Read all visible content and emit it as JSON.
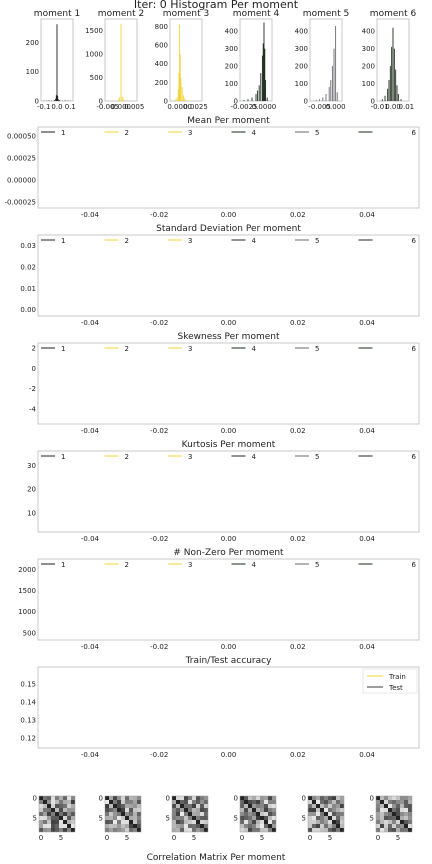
{
  "figure": {
    "suptitle": "Iter: 0 Histogram Per moment",
    "corr_title": "Correlation Matrix Per moment"
  },
  "colors": {
    "moment_1": "#1f1f1f",
    "moment_2": "#f2d33a",
    "moment_3": "#f2d33a",
    "moment_4": "#1c2a1c",
    "moment_5": "#6a6a70",
    "moment_6": "#1c2a1c",
    "train": "#f2d33a",
    "test": "#3a3a3a"
  },
  "chart_data": [
    {
      "type": "histogram",
      "title": "moment 1",
      "xticks": [
        "-0.1",
        "0.0",
        "0.1"
      ],
      "yticks": [
        "0",
        "100",
        "200"
      ],
      "xlim": [
        -0.12,
        0.12
      ],
      "ylim": [
        0,
        280
      ],
      "color": "#1f1f1f",
      "bins_x": [
        -0.1,
        -0.08,
        -0.06,
        -0.04,
        -0.02,
        -0.01,
        -0.005,
        0.0,
        0.005,
        0.01,
        0.02,
        0.04,
        0.06,
        0.08,
        0.1
      ],
      "bins_y": [
        1,
        1,
        2,
        1,
        3,
        8,
        20,
        262,
        18,
        6,
        3,
        1,
        2,
        1,
        1
      ]
    },
    {
      "type": "histogram",
      "title": "moment 2",
      "xticks": [
        "-0.005",
        "0.000",
        "0.005"
      ],
      "yticks": [
        "0",
        "500",
        "1000",
        "1500"
      ],
      "xlim": [
        -0.006,
        0.006
      ],
      "ylim": [
        0,
        1750
      ],
      "color": "#f2d33a",
      "bins_x": [
        -0.003,
        -0.002,
        -0.001,
        -0.0005,
        0.0,
        0.0005,
        0.001,
        0.002,
        0.003
      ],
      "bins_y": [
        5,
        10,
        30,
        80,
        1650,
        90,
        40,
        15,
        5
      ]
    },
    {
      "type": "histogram",
      "title": "moment 3",
      "xticks": [
        "0.0000",
        "0.0025"
      ],
      "yticks": [
        "0",
        "200",
        "400",
        "600",
        "800"
      ],
      "xlim": [
        -0.0015,
        0.0035
      ],
      "ylim": [
        0,
        880
      ],
      "color": "#f2d33a",
      "bins_x": [
        -0.0006,
        -0.0004,
        -0.0002,
        -0.0001,
        0.0,
        0.0001,
        0.0002,
        0.0004,
        0.0006,
        0.0008,
        0.001,
        0.0015
      ],
      "bins_y": [
        20,
        40,
        120,
        300,
        820,
        500,
        250,
        150,
        60,
        30,
        10,
        5
      ]
    },
    {
      "type": "histogram",
      "title": "moment 4",
      "xticks": [
        "-0.0025",
        "0.0000"
      ],
      "yticks": [
        "0",
        "100",
        "200",
        "300",
        "400"
      ],
      "xlim": [
        -0.003,
        0.001
      ],
      "ylim": [
        0,
        470
      ],
      "color": "#1c2a1c",
      "bins_x": [
        -0.0025,
        -0.002,
        -0.0015,
        -0.001,
        -0.0008,
        -0.0006,
        -0.0004,
        -0.0002,
        -0.0001,
        0.0,
        0.0001,
        0.0002,
        0.0004
      ],
      "bins_y": [
        5,
        10,
        20,
        40,
        60,
        90,
        160,
        260,
        330,
        450,
        300,
        120,
        20
      ]
    },
    {
      "type": "histogram",
      "title": "moment 5",
      "xticks": [
        "-0.005",
        "0.000"
      ],
      "yticks": [
        "0",
        "100",
        "200",
        "300",
        "400"
      ],
      "xlim": [
        -0.008,
        0.002
      ],
      "ylim": [
        0,
        470
      ],
      "color": "#6a6a70",
      "bins_x": [
        -0.006,
        -0.005,
        -0.004,
        -0.003,
        -0.002,
        -0.0015,
        -0.001,
        -0.0005,
        0.0,
        0.0005
      ],
      "bins_y": [
        5,
        10,
        20,
        40,
        80,
        120,
        200,
        300,
        430,
        50
      ]
    },
    {
      "type": "histogram",
      "title": "moment 6",
      "xticks": [
        "-0.01",
        "0.00",
        "0.01"
      ],
      "yticks": [
        "0",
        "100",
        "200",
        "300",
        "400"
      ],
      "xlim": [
        -0.012,
        0.012
      ],
      "ylim": [
        0,
        470
      ],
      "color": "#1c2a1c",
      "bins_x": [
        -0.008,
        -0.006,
        -0.004,
        -0.003,
        -0.002,
        -0.001,
        0.0,
        0.001,
        0.002,
        0.003,
        0.004,
        0.006
      ],
      "bins_y": [
        10,
        30,
        70,
        120,
        200,
        310,
        420,
        300,
        180,
        90,
        40,
        10
      ]
    },
    {
      "type": "line",
      "title": "Mean Per moment",
      "xticks": [
        "-0.04",
        "-0.02",
        "0.00",
        "0.02",
        "0.04"
      ],
      "xlim": [
        -0.055,
        0.055
      ],
      "yticks": [
        "0.00050",
        "0.00025",
        "0.00000",
        "-0.00025"
      ],
      "ytick_values": [
        0.0005,
        0.00025,
        0.0,
        -0.00025
      ],
      "ylim": [
        -0.00032,
        0.0006
      ],
      "legend": [
        "1",
        "2",
        "3",
        "4",
        "5",
        "6"
      ]
    },
    {
      "type": "line",
      "title": "Standard Deviation Per moment",
      "xticks": [
        "-0.04",
        "-0.02",
        "0.00",
        "0.02",
        "0.04"
      ],
      "xlim": [
        -0.055,
        0.055
      ],
      "yticks": [
        "0.03",
        "0.02",
        "0.01",
        "0.00"
      ],
      "ytick_values": [
        0.03,
        0.02,
        0.01,
        0.0
      ],
      "ylim": [
        -0.003,
        0.035
      ],
      "legend": [
        "1",
        "2",
        "3",
        "4",
        "5",
        "6"
      ]
    },
    {
      "type": "line",
      "title": "Skewness Per moment",
      "xticks": [
        "-0.04",
        "-0.02",
        "0.00",
        "0.02",
        "0.04"
      ],
      "xlim": [
        -0.055,
        0.055
      ],
      "yticks": [
        "2",
        "0",
        "-2",
        "-4"
      ],
      "ytick_values": [
        2,
        0,
        -2,
        -4
      ],
      "ylim": [
        -5.5,
        2.5
      ],
      "legend": [
        "1",
        "2",
        "3",
        "4",
        "5",
        "6"
      ]
    },
    {
      "type": "line",
      "title": "Kurtosis Per moment",
      "xticks": [
        "-0.04",
        "-0.02",
        "0.00",
        "0.02",
        "0.04"
      ],
      "xlim": [
        -0.055,
        0.055
      ],
      "yticks": [
        "30",
        "20",
        "10"
      ],
      "ytick_values": [
        30,
        20,
        10
      ],
      "ylim": [
        2,
        36
      ],
      "legend": [
        "1",
        "2",
        "3",
        "4",
        "5",
        "6"
      ]
    },
    {
      "type": "line",
      "title": "# Non-Zero Per moment",
      "xticks": [
        "-0.04",
        "-0.02",
        "0.00",
        "0.02",
        "0.04"
      ],
      "xlim": [
        -0.055,
        0.055
      ],
      "yticks": [
        "2000",
        "1500",
        "1000",
        "500"
      ],
      "ytick_values": [
        2000,
        1500,
        1000,
        500
      ],
      "ylim": [
        330,
        2250
      ],
      "legend": [
        "1",
        "2",
        "3",
        "4",
        "5",
        "6"
      ]
    },
    {
      "type": "line",
      "title": "Train/Test accuracy",
      "xticks": [
        "-0.04",
        "-0.02",
        "0.00",
        "0.02",
        "0.04"
      ],
      "xlim": [
        -0.055,
        0.055
      ],
      "yticks": [
        "0.15",
        "0.14",
        "0.13",
        "0.12"
      ],
      "ytick_values": [
        0.15,
        0.14,
        0.13,
        0.12
      ],
      "ylim": [
        0.1145,
        0.1595
      ],
      "legend": [
        "Train",
        "Test"
      ]
    },
    {
      "type": "heatmap",
      "title": "Correlation Matrix Per moment",
      "xticks": [
        "0",
        "5"
      ],
      "yticks": [
        "0",
        "5"
      ],
      "size": 9,
      "panels": 6
    }
  ]
}
